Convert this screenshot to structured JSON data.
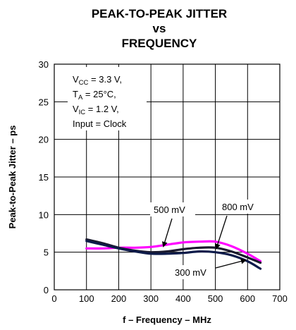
{
  "chart_data": {
    "type": "line",
    "title": "PEAK-TO-PEAK JITTER vs FREQUENCY",
    "title_lines": [
      "PEAK-TO-PEAK JITTER",
      "vs",
      "FREQUENCY"
    ],
    "xlabel": "f – Frequency – MHz",
    "ylabel": "Peak-to-Peak Jitter – ps",
    "xlim": [
      0,
      700
    ],
    "ylim": [
      0,
      30
    ],
    "x_ticks": [
      0,
      100,
      200,
      300,
      400,
      500,
      600,
      700
    ],
    "y_ticks": [
      0,
      5,
      10,
      15,
      20,
      25,
      30
    ],
    "grid": true,
    "conditions": {
      "vcc": {
        "sym": "V",
        "sub": "CC",
        "rest": " = 3.3 V,"
      },
      "ta": {
        "sym": "T",
        "sub": "A",
        "rest": " = 25°C,"
      },
      "vic": {
        "sym": "V",
        "sub": "IC",
        "rest": " = 1.2 V,"
      },
      "input": "Input = Clock"
    },
    "series": [
      {
        "name": "500 mV",
        "color": "#ff00ff",
        "x": [
          100,
          150,
          200,
          250,
          300,
          350,
          400,
          450,
          500,
          550,
          600,
          640
        ],
        "y": [
          5.5,
          5.5,
          5.6,
          5.6,
          5.7,
          6.0,
          6.3,
          6.4,
          6.4,
          5.8,
          4.8,
          3.8
        ]
      },
      {
        "name": "800 mV",
        "color": "#1a1a2e",
        "x": [
          100,
          150,
          200,
          250,
          300,
          350,
          400,
          450,
          500,
          550,
          600,
          640
        ],
        "y": [
          6.7,
          6.2,
          5.6,
          5.2,
          5.0,
          5.1,
          5.4,
          5.6,
          5.6,
          5.1,
          4.3,
          3.6
        ]
      },
      {
        "name": "300 mV",
        "color": "#0d1b4a",
        "x": [
          100,
          150,
          200,
          250,
          300,
          350,
          400,
          450,
          500,
          550,
          600,
          640
        ],
        "y": [
          6.5,
          6.0,
          5.5,
          5.1,
          4.8,
          4.8,
          4.9,
          5.1,
          5.0,
          4.6,
          3.8,
          2.8
        ]
      }
    ]
  }
}
